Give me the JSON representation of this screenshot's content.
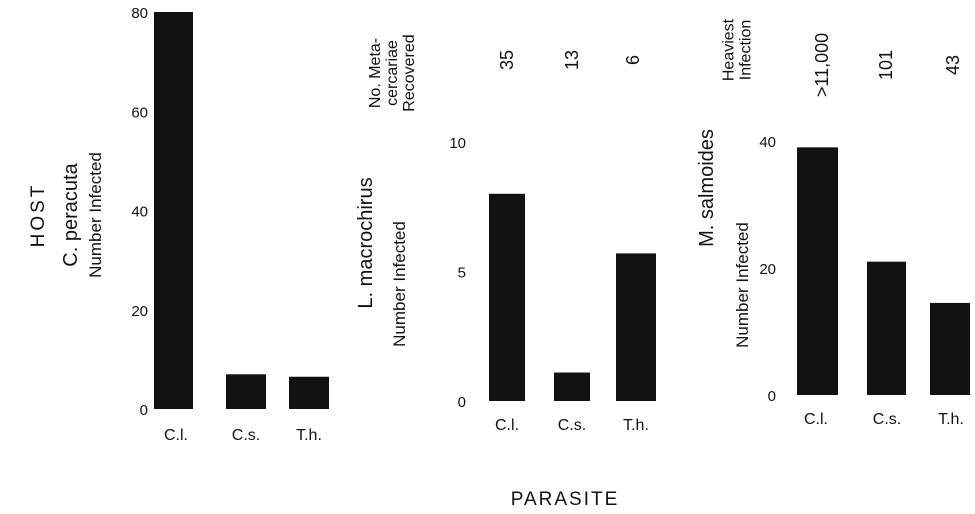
{
  "figure": {
    "host_label": "HOST",
    "parasite_label": "PARASITE"
  },
  "chart_data": [
    {
      "type": "bar",
      "title": "C. peracuta",
      "ylabel": "Number Infected",
      "xlabel": "",
      "categories": [
        "C.l.",
        "C.s.",
        "T.h."
      ],
      "values": [
        80,
        7,
        6.5
      ],
      "ylim": [
        0,
        80
      ],
      "yticks": [
        "0",
        "20",
        "40",
        "60",
        "80"
      ],
      "grid": false
    },
    {
      "type": "bar",
      "title": "L. macrochirus",
      "ylabel": "Number Infected",
      "xlabel": "",
      "categories": [
        "C.l.",
        "C.s.",
        "T.h."
      ],
      "values": [
        8,
        1.1,
        5.7
      ],
      "ylim": [
        0,
        10
      ],
      "yticks": [
        "0",
        "5",
        "10"
      ],
      "annotation_header": "No. Meta-\ncercariae\nRecovered",
      "annotations": [
        "35",
        "13",
        "6"
      ],
      "grid": false
    },
    {
      "type": "bar",
      "title": "M. salmoides",
      "ylabel": "Number Infected",
      "xlabel": "",
      "categories": [
        "C.l.",
        "C.s.",
        "T.h."
      ],
      "values": [
        39,
        21,
        14.5
      ],
      "ylim": [
        0,
        40
      ],
      "yticks": [
        "0",
        "20",
        "40"
      ],
      "annotation_header": "Heaviest\nInfection",
      "annotations": [
        ">11,000",
        "101",
        "43"
      ],
      "grid": false
    }
  ]
}
